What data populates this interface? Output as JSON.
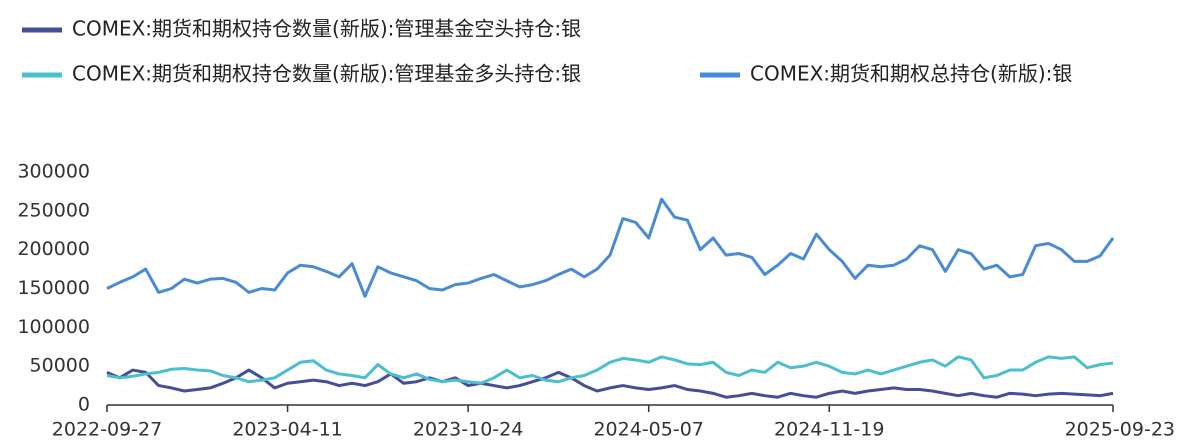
{
  "chart_data": {
    "type": "line",
    "x": [
      "2022-09-27",
      "2022-10-11",
      "2022-10-25",
      "2022-11-08",
      "2022-11-22",
      "2022-12-06",
      "2022-12-20",
      "2023-01-03",
      "2023-01-17",
      "2023-01-31",
      "2023-02-14",
      "2023-02-28",
      "2023-03-14",
      "2023-03-28",
      "2023-04-11",
      "2023-04-25",
      "2023-05-09",
      "2023-05-23",
      "2023-06-06",
      "2023-06-20",
      "2023-07-04",
      "2023-07-18",
      "2023-08-01",
      "2023-08-15",
      "2023-08-29",
      "2023-09-12",
      "2023-09-26",
      "2023-10-10",
      "2023-10-24",
      "2023-11-07",
      "2023-11-21",
      "2023-12-05",
      "2023-12-19",
      "2024-01-02",
      "2024-01-16",
      "2024-01-30",
      "2024-02-13",
      "2024-02-27",
      "2024-03-12",
      "2024-03-26",
      "2024-04-09",
      "2024-04-23",
      "2024-05-07",
      "2024-05-21",
      "2024-06-04",
      "2024-06-18",
      "2024-07-02",
      "2024-07-16",
      "2024-07-30",
      "2024-08-13",
      "2024-08-27",
      "2024-09-10",
      "2024-09-24",
      "2024-10-08",
      "2024-10-22",
      "2024-11-05",
      "2024-11-19",
      "2024-12-03",
      "2024-12-17",
      "2024-12-31",
      "2025-01-14",
      "2025-01-28",
      "2025-02-11",
      "2025-02-25",
      "2025-03-11",
      "2025-03-25",
      "2025-04-08",
      "2025-04-22",
      "2025-05-06",
      "2025-05-20",
      "2025-06-03",
      "2025-06-17",
      "2025-07-01",
      "2025-07-15",
      "2025-07-29",
      "2025-08-12",
      "2025-08-26",
      "2025-09-09",
      "2025-09-23"
    ],
    "series": [
      {
        "name": "COMEX:期货和期权持仓数量(新版):管理基金空头持仓:银",
        "color": "#464e97",
        "values": [
          42000,
          35000,
          45000,
          42000,
          25000,
          22000,
          18000,
          20000,
          22000,
          28000,
          35000,
          45000,
          35000,
          22000,
          28000,
          30000,
          32000,
          30000,
          25000,
          28000,
          25000,
          30000,
          40000,
          28000,
          30000,
          35000,
          30000,
          35000,
          25000,
          28000,
          25000,
          22000,
          25000,
          30000,
          35000,
          42000,
          35000,
          25000,
          18000,
          22000,
          25000,
          22000,
          20000,
          22000,
          25000,
          20000,
          18000,
          15000,
          10000,
          12000,
          15000,
          12000,
          10000,
          15000,
          12000,
          10000,
          15000,
          18000,
          15000,
          18000,
          20000,
          22000,
          20000,
          20000,
          18000,
          15000,
          12000,
          15000,
          12000,
          10000,
          15000,
          14000,
          12000,
          14000,
          15000,
          14000,
          13000,
          12000,
          15000
        ]
      },
      {
        "name": "COMEX:期货和期权持仓数量(新版):管理基金多头持仓:银",
        "color": "#4bbfcf",
        "values": [
          38000,
          35000,
          37000,
          40000,
          42000,
          46000,
          47000,
          45000,
          44000,
          38000,
          35000,
          30000,
          32000,
          35000,
          45000,
          55000,
          57000,
          45000,
          40000,
          38000,
          35000,
          52000,
          40000,
          35000,
          40000,
          33000,
          30000,
          32000,
          30000,
          28000,
          35000,
          45000,
          35000,
          38000,
          32000,
          30000,
          35000,
          38000,
          45000,
          55000,
          60000,
          58000,
          55000,
          62000,
          58000,
          53000,
          52000,
          55000,
          42000,
          38000,
          45000,
          42000,
          55000,
          48000,
          50000,
          55000,
          50000,
          42000,
          40000,
          45000,
          40000,
          45000,
          50000,
          55000,
          58000,
          50000,
          62000,
          58000,
          35000,
          38000,
          45000,
          45000,
          55000,
          62000,
          60000,
          62000,
          48000,
          52000,
          54000
        ]
      },
      {
        "name": "COMEX:期货和期权总持仓(新版):银",
        "color": "#4a8bd6",
        "values": [
          150000,
          158000,
          165000,
          175000,
          145000,
          150000,
          162000,
          157000,
          162000,
          163000,
          158000,
          145000,
          150000,
          148000,
          170000,
          180000,
          178000,
          172000,
          165000,
          182000,
          140000,
          178000,
          170000,
          165000,
          160000,
          150000,
          148000,
          155000,
          157000,
          163000,
          168000,
          160000,
          152000,
          155000,
          160000,
          168000,
          175000,
          165000,
          175000,
          193000,
          240000,
          235000,
          215000,
          265000,
          242000,
          238000,
          200000,
          215000,
          193000,
          195000,
          190000,
          168000,
          180000,
          195000,
          188000,
          220000,
          200000,
          185000,
          163000,
          180000,
          178000,
          180000,
          188000,
          205000,
          200000,
          172000,
          200000,
          195000,
          175000,
          180000,
          165000,
          168000,
          205000,
          208000,
          200000,
          185000,
          185000,
          192000,
          215000
        ]
      }
    ],
    "xlim": [
      "2022-09-27",
      "2025-09-23"
    ],
    "xticks": [
      "2022-09-27",
      "2023-04-11",
      "2023-10-24",
      "2024-05-07",
      "2024-11-19",
      "2025-09-23"
    ],
    "ylim": [
      0,
      300000
    ],
    "yticks": [
      0,
      50000,
      100000,
      150000,
      200000,
      250000,
      300000
    ]
  }
}
